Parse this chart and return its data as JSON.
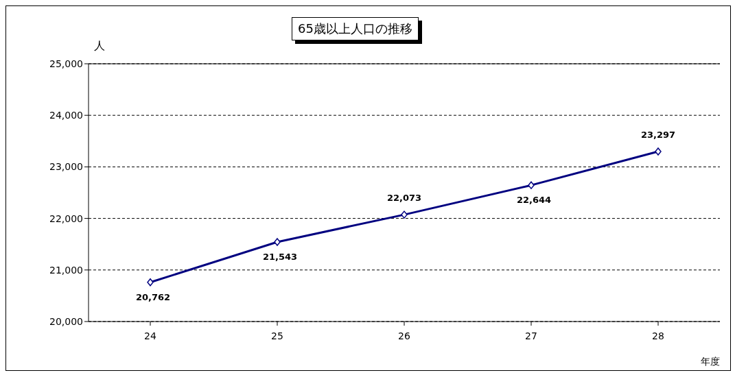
{
  "chart_data": {
    "type": "line",
    "title": "65歳以上人口の推移",
    "ylabel": "人",
    "xlabel": "年度",
    "categories": [
      "24",
      "25",
      "26",
      "27",
      "28"
    ],
    "series": [
      {
        "color": "#000080",
        "values": [
          20762,
          21543,
          22073,
          22644,
          23297
        ],
        "value_labels": [
          "20,762",
          "21,543",
          "22,073",
          "22,644",
          "23,297"
        ]
      }
    ],
    "ylim": [
      20000,
      25000
    ],
    "yticks": [
      {
        "value": 20000,
        "label": "20,000"
      },
      {
        "value": 21000,
        "label": "21,000"
      },
      {
        "value": 22000,
        "label": "22,000"
      },
      {
        "value": 23000,
        "label": "23,000"
      },
      {
        "value": 24000,
        "label": "24,000"
      },
      {
        "value": 25000,
        "label": "25,000"
      }
    ],
    "grid": "y",
    "marker": "diamond",
    "line_style": "solid"
  }
}
